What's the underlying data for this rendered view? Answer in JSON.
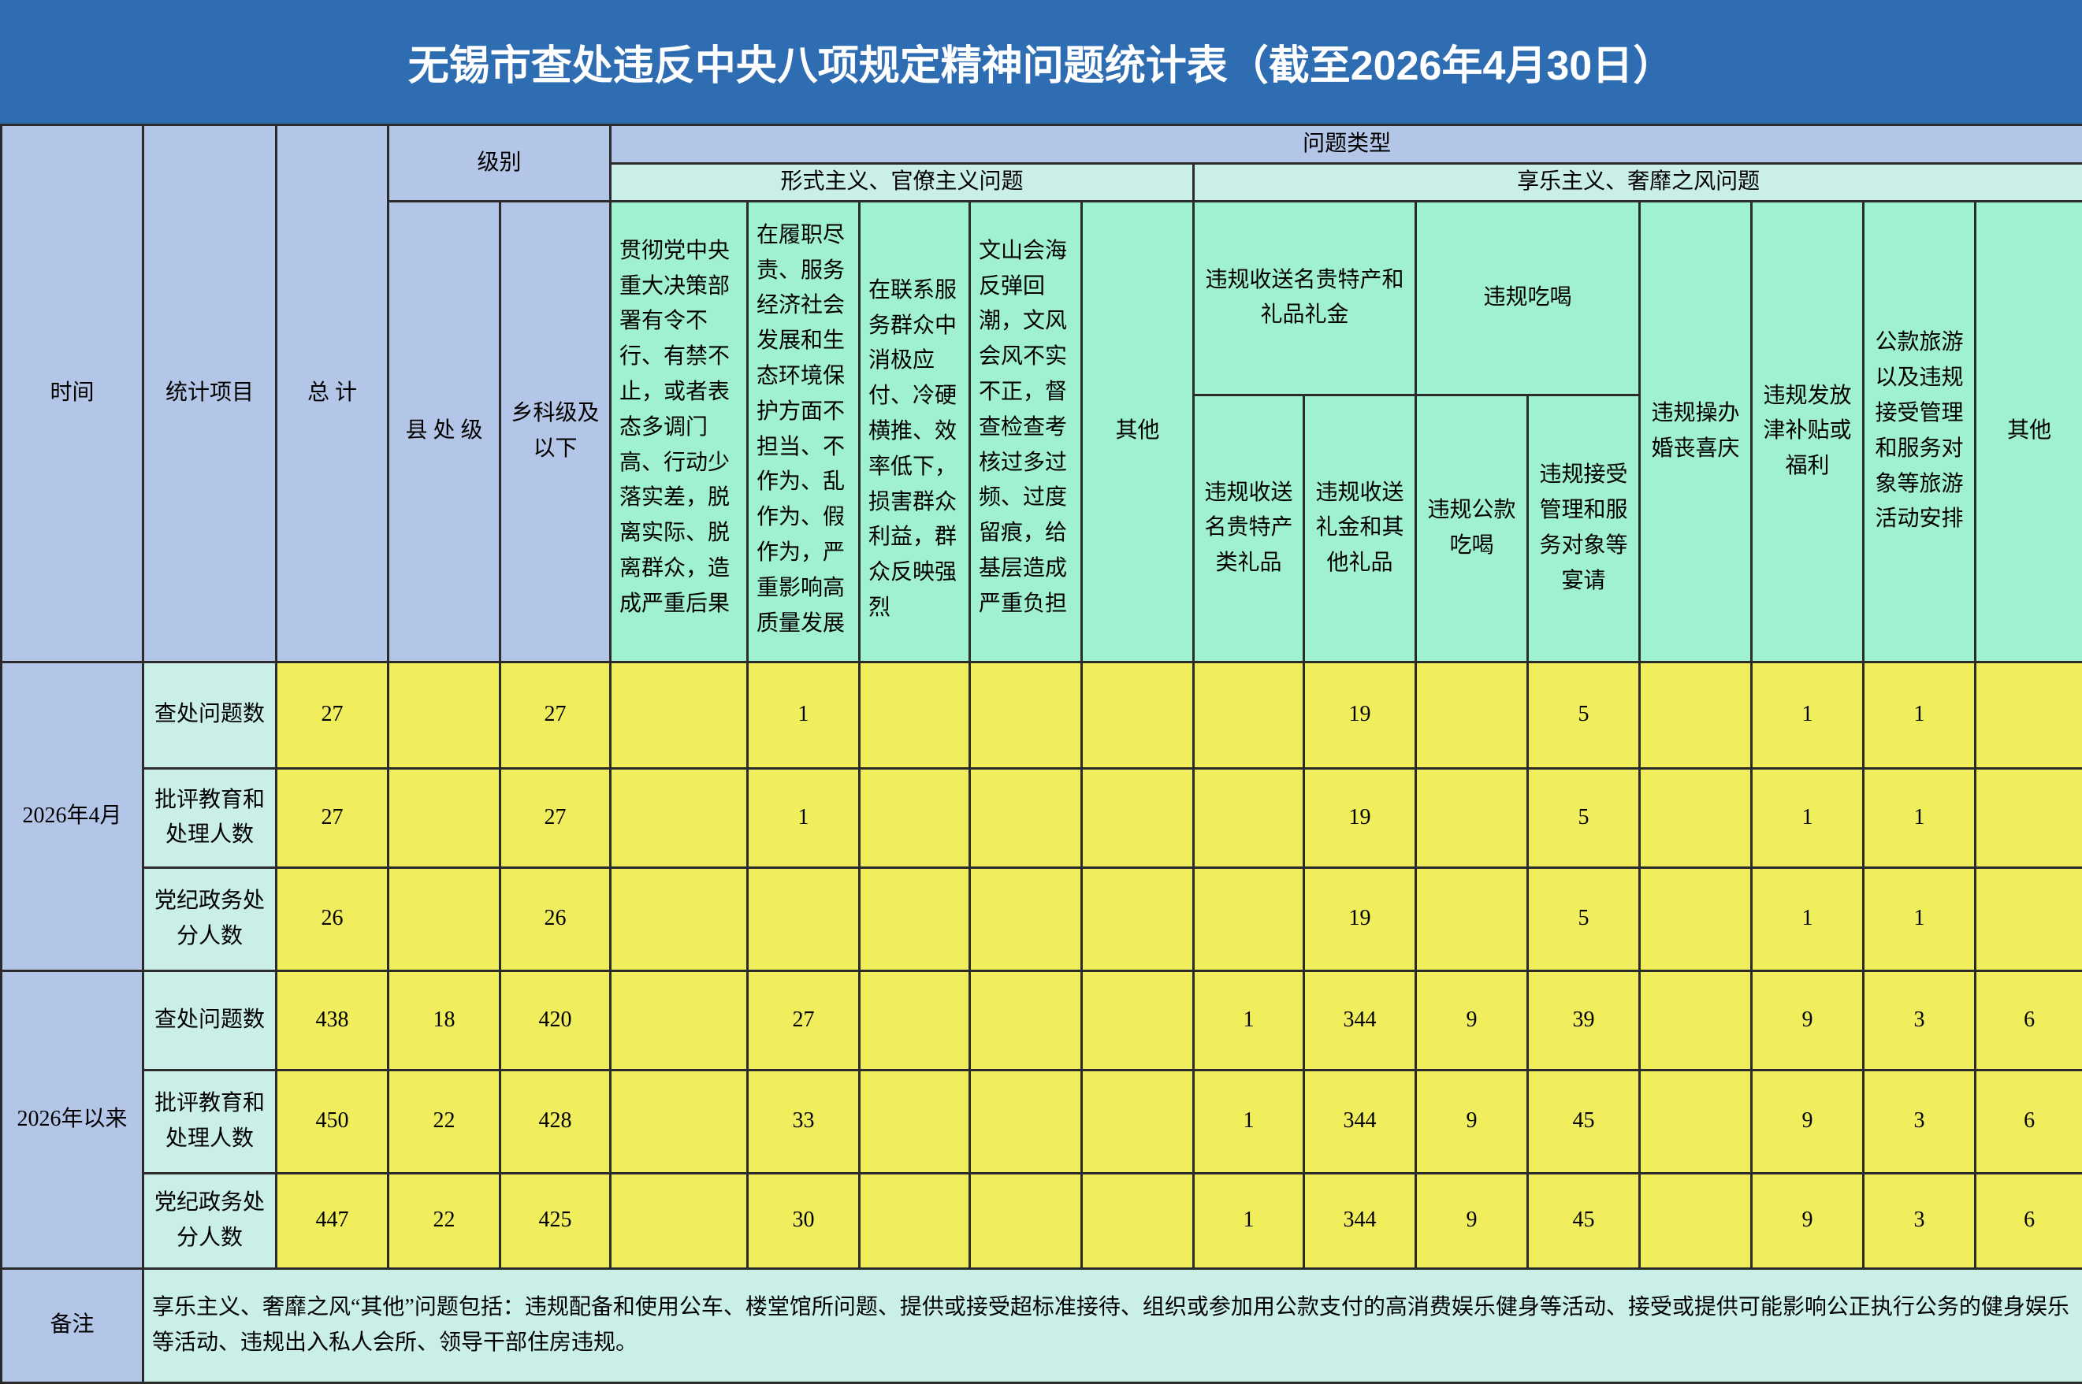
{
  "title": "无锡市查处违反中央八项规定精神问题统计表（截至2026年4月30日）",
  "header": {
    "time": "时间",
    "item": "统计项目",
    "total": "总 计",
    "level": "级别",
    "county": "县 处 级",
    "township": "乡科级及以下",
    "problem_type": "问题类型",
    "formalism": {
      "title": "形式主义、官僚主义问题",
      "columns": [
        "贯彻党中央重大决策部署有令不行、有禁不止，或者表态多调门高、行动少落实差，脱离实际、脱离群众，造成严重后果",
        "在履职尽责、服务经济社会发展和生态环境保护方面不担当、不作为、乱作为、假作为，严重影响高质量发展",
        "在联系服务群众中消极应付、冷硬横推、效率低下，损害群众利益，群众反映强烈",
        "文山会海反弹回潮，文风会风不实不正，督查检查考核过多过频、过度留痕，给基层造成严重负担",
        "其他"
      ]
    },
    "hedonism": {
      "title": "享乐主义、奢靡之风问题",
      "gifts": {
        "title": "违规收送名贵特产和礼品礼金",
        "columns": [
          "违规收送名贵特产类礼品",
          "违规收送礼金和其他礼品"
        ]
      },
      "dining": {
        "title": "违规吃喝",
        "columns": [
          "违规公款吃喝",
          "违规接受管理和服务对象等宴请"
        ]
      },
      "columns": [
        "违规操办婚丧喜庆",
        "违规发放津补贴或福利",
        "公款旅游以及违规接受管理和服务对象等旅游活动安排",
        "其他"
      ]
    }
  },
  "groups": [
    {
      "period": "2026年4月",
      "rows": [
        {
          "item": "查处问题数",
          "values": [
            27,
            null,
            27,
            null,
            1,
            null,
            null,
            null,
            null,
            19,
            null,
            5,
            null,
            1,
            1,
            null
          ]
        },
        {
          "item": "批评教育和处理人数",
          "values": [
            27,
            null,
            27,
            null,
            1,
            null,
            null,
            null,
            null,
            19,
            null,
            5,
            null,
            1,
            1,
            null
          ]
        },
        {
          "item": "党纪政务处分人数",
          "values": [
            26,
            null,
            26,
            null,
            null,
            null,
            null,
            null,
            null,
            19,
            null,
            5,
            null,
            1,
            1,
            null
          ]
        }
      ]
    },
    {
      "period": "2026年以来",
      "rows": [
        {
          "item": "查处问题数",
          "values": [
            438,
            18,
            420,
            null,
            27,
            null,
            null,
            null,
            1,
            344,
            9,
            39,
            null,
            9,
            3,
            6
          ]
        },
        {
          "item": "批评教育和处理人数",
          "values": [
            450,
            22,
            428,
            null,
            33,
            null,
            null,
            null,
            1,
            344,
            9,
            45,
            null,
            9,
            3,
            6
          ]
        },
        {
          "item": "党纪政务处分人数",
          "values": [
            447,
            22,
            425,
            null,
            30,
            null,
            null,
            null,
            1,
            344,
            9,
            45,
            null,
            9,
            3,
            6
          ]
        }
      ]
    }
  ],
  "note": {
    "label": "备注",
    "text": "享乐主义、奢靡之风“其他”问题包括：违规配备和使用公车、楼堂馆所问题、提供或接受超标准接待、组织或参加用公款支付的高消费娱乐健身等活动、接受或提供可能影响公正执行公务的健身娱乐等活动、违规出入私人会所、领导干部住房违规。"
  }
}
